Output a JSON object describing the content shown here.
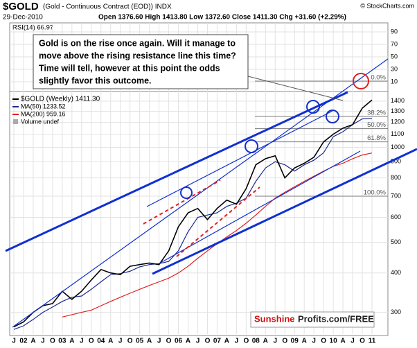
{
  "chart_data": {
    "type": "line",
    "title": "$GOLD",
    "subtitle": "(Gold - Continuous Contract (EOD)) INDX",
    "source": "© StockCharts.com",
    "date": "29-Dec-2010",
    "quote": "Open 1376.60  High 1413.80  Low 1372.60  Close 1411.30  Chg +31.60 (+2.29%)",
    "rsi_label": "RSI(14) 66.97",
    "rsi_ylim": [
      0,
      100
    ],
    "rsi_yticks": [
      10,
      30,
      50,
      70,
      90
    ],
    "annotation": [
      "Gold is on the rise once again. Will it manage to",
      "move above the rising resistance line this time?",
      "Time will tell, however at this point the odds",
      "slightly favor this outcome."
    ],
    "volume_label": "Volume undef",
    "watermark": [
      "Sunshine",
      "Profits.com/FREE"
    ],
    "log_scale": true,
    "grid": true,
    "ylim": [
      256,
      1620
    ],
    "yticks": [
      300,
      400,
      500,
      600,
      700,
      800,
      900,
      1000,
      1100,
      1200,
      1300,
      1400
    ],
    "categories": [
      "J",
      "02",
      "A",
      "J",
      "O",
      "03",
      "A",
      "J",
      "O",
      "04",
      "A",
      "J",
      "O",
      "05",
      "A",
      "J",
      "O",
      "06",
      "A",
      "J",
      "O",
      "07",
      "A",
      "J",
      "O",
      "08",
      "A",
      "J",
      "O",
      "09",
      "A",
      "J",
      "O",
      "10",
      "A",
      "J",
      "O",
      "11"
    ],
    "series": [
      {
        "name": "$GOLD (Weekly) 1411.30",
        "color": "#000000",
        "values": [
          270,
          280,
          300,
          315,
          320,
          350,
          330,
          350,
          380,
          410,
          400,
          395,
          420,
          425,
          430,
          425,
          470,
          560,
          620,
          640,
          590,
          640,
          680,
          660,
          740,
          880,
          920,
          940,
          800,
          860,
          890,
          930,
          1040,
          1100,
          1150,
          1180,
          1330,
          1411
        ]
      },
      {
        "name": "MA(50) 1233.52",
        "color": "#1a2a8c",
        "values": [
          265,
          272,
          285,
          300,
          312,
          325,
          335,
          338,
          355,
          375,
          395,
          398,
          405,
          418,
          425,
          428,
          435,
          470,
          540,
          600,
          610,
          620,
          650,
          665,
          690,
          780,
          860,
          900,
          880,
          840,
          880,
          910,
          960,
          1080,
          1120,
          1180,
          1230,
          1234
        ]
      },
      {
        "name": "MA(200) 959.16",
        "color": "#e02020",
        "values": [
          null,
          null,
          null,
          null,
          null,
          290,
          295,
          300,
          305,
          315,
          325,
          335,
          345,
          355,
          365,
          375,
          385,
          400,
          420,
          445,
          470,
          495,
          520,
          545,
          575,
          610,
          650,
          690,
          720,
          750,
          780,
          810,
          840,
          870,
          890,
          920,
          945,
          959
        ]
      }
    ],
    "fibonacci": [
      {
        "label": "0.0%",
        "value": 1620
      },
      {
        "label": "38.2%",
        "value": 1253
      },
      {
        "label": "50.0%",
        "value": 1145
      },
      {
        "label": "61.8%",
        "value": 1040
      },
      {
        "label": "100.0%",
        "value": 700
      }
    ]
  }
}
